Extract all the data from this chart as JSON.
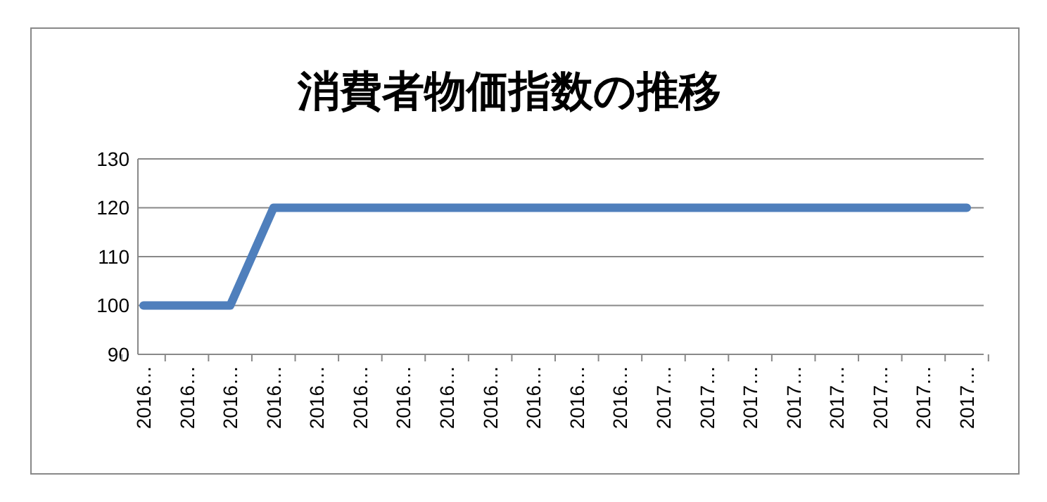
{
  "chart_data": {
    "type": "line",
    "title": "消費者物価指数の推移",
    "categories": [
      "2016…",
      "2016…",
      "2016…",
      "2016…",
      "2016…",
      "2016…",
      "2016…",
      "2016…",
      "2016…",
      "2016…",
      "2016…",
      "2016…",
      "2017…",
      "2017…",
      "2017…",
      "2017…",
      "2017…",
      "2017…",
      "2017…",
      "2017…"
    ],
    "series": [
      {
        "color": "#4f7fbc",
        "values": [
          100,
          100,
          100,
          120,
          120,
          120,
          120,
          120,
          120,
          120,
          120,
          120,
          120,
          120,
          120,
          120,
          120,
          120,
          120,
          120
        ]
      }
    ],
    "ylim": [
      90,
      130
    ],
    "yticks": [
      90,
      100,
      110,
      120,
      130
    ],
    "grid": "y",
    "marker": "none",
    "line_style": "solid"
  }
}
